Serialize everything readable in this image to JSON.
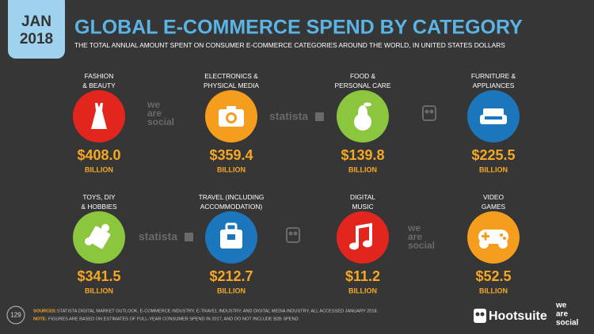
{
  "badge": {
    "month": "JAN",
    "year": "2018"
  },
  "header": {
    "title": "GLOBAL E-COMMERCE SPEND BY CATEGORY",
    "subtitle": "THE TOTAL ANNUAL AMOUNT SPENT ON CONSUMER E-COMMERCE CATEGORIES AROUND THE WORLD, IN UNITED STATES DOLLARS"
  },
  "categories": [
    {
      "label": [
        "FASHION",
        "& BEAUTY"
      ],
      "amount": "$408.0",
      "unit": "BILLION",
      "color": "#e3261d"
    },
    {
      "label": [
        "ELECTRONICS &",
        "PHYSICAL MEDIA"
      ],
      "amount": "$359.4",
      "unit": "BILLION",
      "color": "#f59d1c"
    },
    {
      "label": [
        "FOOD &",
        "PERSONAL CARE"
      ],
      "amount": "$139.8",
      "unit": "BILLION",
      "color": "#8cc63e"
    },
    {
      "label": [
        "FURNITURE &",
        "APPLIANCES"
      ],
      "amount": "$225.5",
      "unit": "BILLION",
      "color": "#1b76bc"
    },
    {
      "label": [
        "TOYS, DIY",
        "& HOBBIES"
      ],
      "amount": "$341.5",
      "unit": "BILLION",
      "color": "#8cc63e"
    },
    {
      "label": [
        "TRAVEL (INCLUDING",
        "ACCOMMODATION)"
      ],
      "amount": "$212.7",
      "unit": "BILLION",
      "color": "#1b76bc"
    },
    {
      "label": [
        "DIGITAL",
        "MUSIC"
      ],
      "amount": "$11.2",
      "unit": "BILLION",
      "color": "#e3261d"
    },
    {
      "label": [
        "VIDEO",
        "GAMES"
      ],
      "amount": "$52.5",
      "unit": "BILLION",
      "color": "#f59d1c"
    }
  ],
  "watermarks": {
    "wearesocial": [
      "we",
      "are",
      "social"
    ],
    "statista": "statista"
  },
  "footer": {
    "page": "129",
    "sources_label": "SOURCES:",
    "sources": "STATISTA DIGITAL MARKET OUTLOOK, E-COMMERCE INDUSTRY, E-TRAVEL INDUSTRY, AND DIGITAL MEDIA INDUSTRY, ALL ACCESSED JANUARY 2018.",
    "note_label": "NOTE:",
    "note": "FIGURES ARE BASED ON ESTIMATES OF FULL-YEAR CONSUMER SPEND IN 2017, AND DO NOT INCLUDE B2B SPEND."
  },
  "brands": {
    "hootsuite": "Hootsuite",
    "wearesocial": [
      "we",
      "are",
      "social"
    ]
  }
}
